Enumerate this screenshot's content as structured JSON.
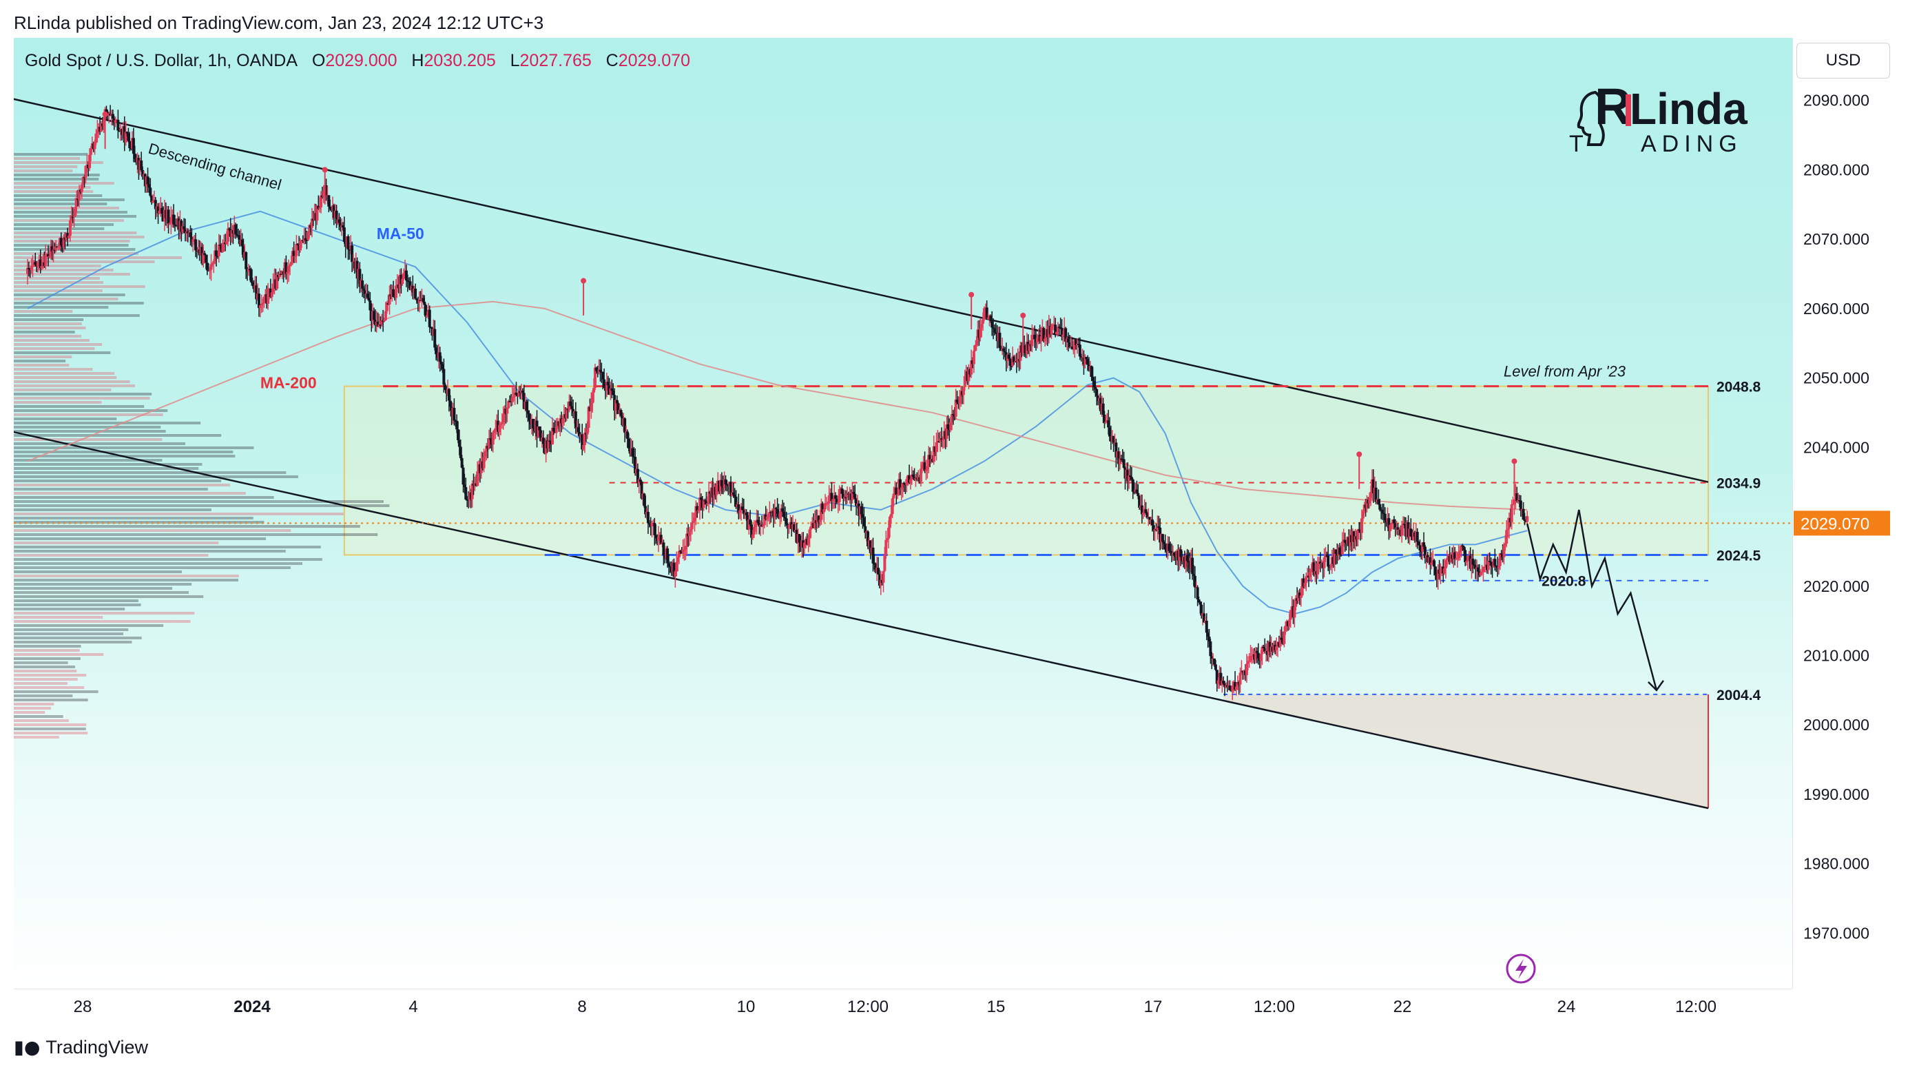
{
  "header": {
    "publisher": "RLinda published on TradingView.com, Jan 23, 2024 12:12 UTC+3",
    "symbol": "Gold Spot / U.S. Dollar, 1h, OANDA",
    "ohlc": {
      "o_label": "O",
      "o": "2029.000",
      "h_label": "H",
      "h": "2030.205",
      "l_label": "L",
      "l": "2027.765",
      "c_label": "C",
      "c": "2029.070"
    }
  },
  "currency_button": "USD",
  "brand": {
    "line1_r": "R",
    "line1": "Linda",
    "line2_t": "T",
    "line2": "ADING"
  },
  "footer": {
    "name": "TradingView",
    "icon": "tradingview-logo-icon"
  },
  "colors": {
    "bull": "#e23b57",
    "bear": "#131722",
    "ma50": "#4a90e2",
    "ma200": "#e08a8a",
    "resistance": "#e8313b",
    "support": "#2962ff",
    "last_price": "#f57f17"
  },
  "chart_data": {
    "type": "candlestick",
    "timeframe": "1h",
    "ylim": [
      1962,
      2099
    ],
    "y_ticks": [
      "2090.000",
      "2080.000",
      "2070.000",
      "2060.000",
      "2050.000",
      "2040.000",
      "2030.000",
      "2020.000",
      "2010.000",
      "2000.000",
      "1990.000",
      "1980.000",
      "1970.000"
    ],
    "x_ticks": [
      "28",
      "2024",
      "4",
      "8",
      "10",
      "12:00",
      "15",
      "17",
      "12:00",
      "22",
      "24",
      "12:00"
    ],
    "last_price": {
      "value": 2029.07,
      "label": "2029.070"
    },
    "price_path": [
      [
        0,
        2065
      ],
      [
        3,
        2070
      ],
      [
        5,
        2083
      ],
      [
        6,
        2088
      ],
      [
        8,
        2084
      ],
      [
        10,
        2074
      ],
      [
        12,
        2072
      ],
      [
        14,
        2066
      ],
      [
        16,
        2072
      ],
      [
        18,
        2060
      ],
      [
        20,
        2066
      ],
      [
        22,
        2072
      ],
      [
        23,
        2077
      ],
      [
        25,
        2068
      ],
      [
        27,
        2057
      ],
      [
        29,
        2065
      ],
      [
        31,
        2059
      ],
      [
        33,
        2044
      ],
      [
        34,
        2032
      ],
      [
        36,
        2042
      ],
      [
        38,
        2048
      ],
      [
        40,
        2040
      ],
      [
        42,
        2046
      ],
      [
        43,
        2040
      ],
      [
        44,
        2052
      ],
      [
        46,
        2044
      ],
      [
        48,
        2030
      ],
      [
        50,
        2022
      ],
      [
        52,
        2032
      ],
      [
        54,
        2035
      ],
      [
        56,
        2028
      ],
      [
        58,
        2031
      ],
      [
        60,
        2026
      ],
      [
        62,
        2033
      ],
      [
        64,
        2033
      ],
      [
        66,
        2020
      ],
      [
        67,
        2034
      ],
      [
        69,
        2036
      ],
      [
        71,
        2042
      ],
      [
        73,
        2052
      ],
      [
        74,
        2060
      ],
      [
        76,
        2052
      ],
      [
        78,
        2056
      ],
      [
        80,
        2057
      ],
      [
        82,
        2052
      ],
      [
        84,
        2040
      ],
      [
        86,
        2032
      ],
      [
        88,
        2026
      ],
      [
        90,
        2023
      ],
      [
        92,
        2007
      ],
      [
        93,
        2005
      ],
      [
        95,
        2010
      ],
      [
        97,
        2012
      ],
      [
        99,
        2022
      ],
      [
        101,
        2024
      ],
      [
        103,
        2028
      ],
      [
        104,
        2035
      ],
      [
        105,
        2029
      ],
      [
        107,
        2028
      ],
      [
        109,
        2022
      ],
      [
        111,
        2025
      ],
      [
        112,
        2022
      ],
      [
        114,
        2024
      ],
      [
        115,
        2033
      ],
      [
        116,
        2029
      ]
    ],
    "forecast_path": [
      [
        116,
        2029
      ],
      [
        117,
        2021
      ],
      [
        118,
        2026
      ],
      [
        119,
        2022
      ],
      [
        120,
        2031
      ],
      [
        121,
        2020
      ],
      [
        122,
        2024
      ],
      [
        123,
        2016
      ],
      [
        124,
        2019
      ],
      [
        126,
        2005
      ]
    ],
    "channel": {
      "label": "Descending channel",
      "upper": [
        [
          -3,
          2091
        ],
        [
          130,
          2035
        ]
      ],
      "lower": [
        [
          -3,
          2043
        ],
        [
          130,
          1988
        ]
      ]
    },
    "moving_averages": [
      {
        "name": "MA-50",
        "values": [
          [
            0,
            2060
          ],
          [
            6,
            2066
          ],
          [
            12,
            2071
          ],
          [
            18,
            2074
          ],
          [
            24,
            2070
          ],
          [
            30,
            2066
          ],
          [
            34,
            2058
          ],
          [
            38,
            2048
          ],
          [
            42,
            2042
          ],
          [
            46,
            2038
          ],
          [
            50,
            2034
          ],
          [
            54,
            2031
          ],
          [
            58,
            2030
          ],
          [
            62,
            2032
          ],
          [
            66,
            2031
          ],
          [
            70,
            2034
          ],
          [
            74,
            2038
          ],
          [
            78,
            2043
          ],
          [
            82,
            2049
          ],
          [
            84,
            2050
          ],
          [
            86,
            2048
          ],
          [
            88,
            2042
          ],
          [
            90,
            2032
          ],
          [
            92,
            2025
          ],
          [
            94,
            2020
          ],
          [
            96,
            2017
          ],
          [
            98,
            2016
          ],
          [
            100,
            2017
          ],
          [
            102,
            2019
          ],
          [
            104,
            2022
          ],
          [
            106,
            2024
          ],
          [
            108,
            2025
          ],
          [
            110,
            2026
          ],
          [
            112,
            2026
          ],
          [
            114,
            2027
          ],
          [
            116,
            2028
          ]
        ]
      },
      {
        "name": "MA-200",
        "values": [
          [
            0,
            2038
          ],
          [
            8,
            2044
          ],
          [
            16,
            2050
          ],
          [
            24,
            2056
          ],
          [
            30,
            2060
          ],
          [
            36,
            2061
          ],
          [
            40,
            2060
          ],
          [
            46,
            2056
          ],
          [
            52,
            2052
          ],
          [
            58,
            2049
          ],
          [
            64,
            2047
          ],
          [
            70,
            2045
          ],
          [
            76,
            2042
          ],
          [
            82,
            2039
          ],
          [
            88,
            2036
          ],
          [
            94,
            2034
          ],
          [
            100,
            2033
          ],
          [
            106,
            2032
          ],
          [
            110,
            2031.5
          ],
          [
            116,
            2031
          ]
        ]
      }
    ],
    "levels": [
      {
        "value": 2048.8,
        "label": "2048.8",
        "style": "resistance-dashed",
        "from": 27.5,
        "annotation": "Level from Apr '23"
      },
      {
        "value": 2034.9,
        "label": "2034.9",
        "style": "resistance-dotted",
        "from": 45
      },
      {
        "value": 2024.5,
        "label": "2024.5",
        "style": "support-dashed",
        "from": 40
      },
      {
        "value": 2020.8,
        "label": "2020.8",
        "style": "support-dotted",
        "from": 99
      },
      {
        "value": 2004.4,
        "label": "2004.4",
        "style": "target",
        "from": 92.5
      }
    ],
    "range_zone": {
      "from": 24.5,
      "to": 130,
      "low": 2024.5,
      "high": 2048.8
    },
    "target_zone": {
      "from": 92.5,
      "to": 130,
      "high": 2004.4,
      "low": 1988
    },
    "swing_high_markers": [
      [
        6,
        2088
      ],
      [
        23,
        2080
      ],
      [
        43,
        2064
      ],
      [
        73,
        2062
      ],
      [
        77,
        2059
      ],
      [
        103,
        2039
      ],
      [
        115,
        2038
      ]
    ],
    "annotations": []
  }
}
